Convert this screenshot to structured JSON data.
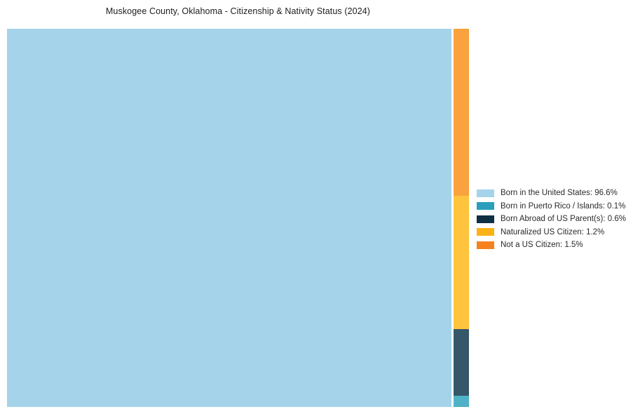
{
  "title": "Muskogee County, Oklahoma - Citizenship & Nativity Status (2024)",
  "chart_data": {
    "type": "treemap",
    "title": "Muskogee County, Oklahoma - Citizenship & Nativity Status (2024)",
    "categories": [
      "Born in the United States",
      "Born in Puerto Rico / Islands",
      "Born Abroad of US Parent(s)",
      "Naturalized US Citizen",
      "Not a US Citizen"
    ],
    "values": [
      96.6,
      0.1,
      0.6,
      1.2,
      1.5
    ],
    "unit": "%",
    "fill_colors": [
      "#A5D3EA",
      "#4FB2C7",
      "#36566A",
      "#FEC43D",
      "#F9A23E"
    ],
    "legend_colors": [
      "#A5D3EA",
      "#2B9EBE",
      "#0E2F44",
      "#FCB216",
      "#F5821F"
    ],
    "layout_hint": "largest category fills left block; remaining categories stacked in narrow right column, largest at top",
    "legend_position": "right-center",
    "grid": false
  },
  "legend": {
    "items": [
      {
        "label": "Born in the United States: 96.6%",
        "color": "#A5D3EA"
      },
      {
        "label": "Born in Puerto Rico / Islands: 0.1%",
        "color": "#2B9EBE"
      },
      {
        "label": "Born Abroad of US Parent(s): 0.6%",
        "color": "#0E2F44"
      },
      {
        "label": "Naturalized US Citizen: 1.2%",
        "color": "#FCB216"
      },
      {
        "label": "Not a US Citizen: 1.5%",
        "color": "#F5821F"
      }
    ]
  }
}
